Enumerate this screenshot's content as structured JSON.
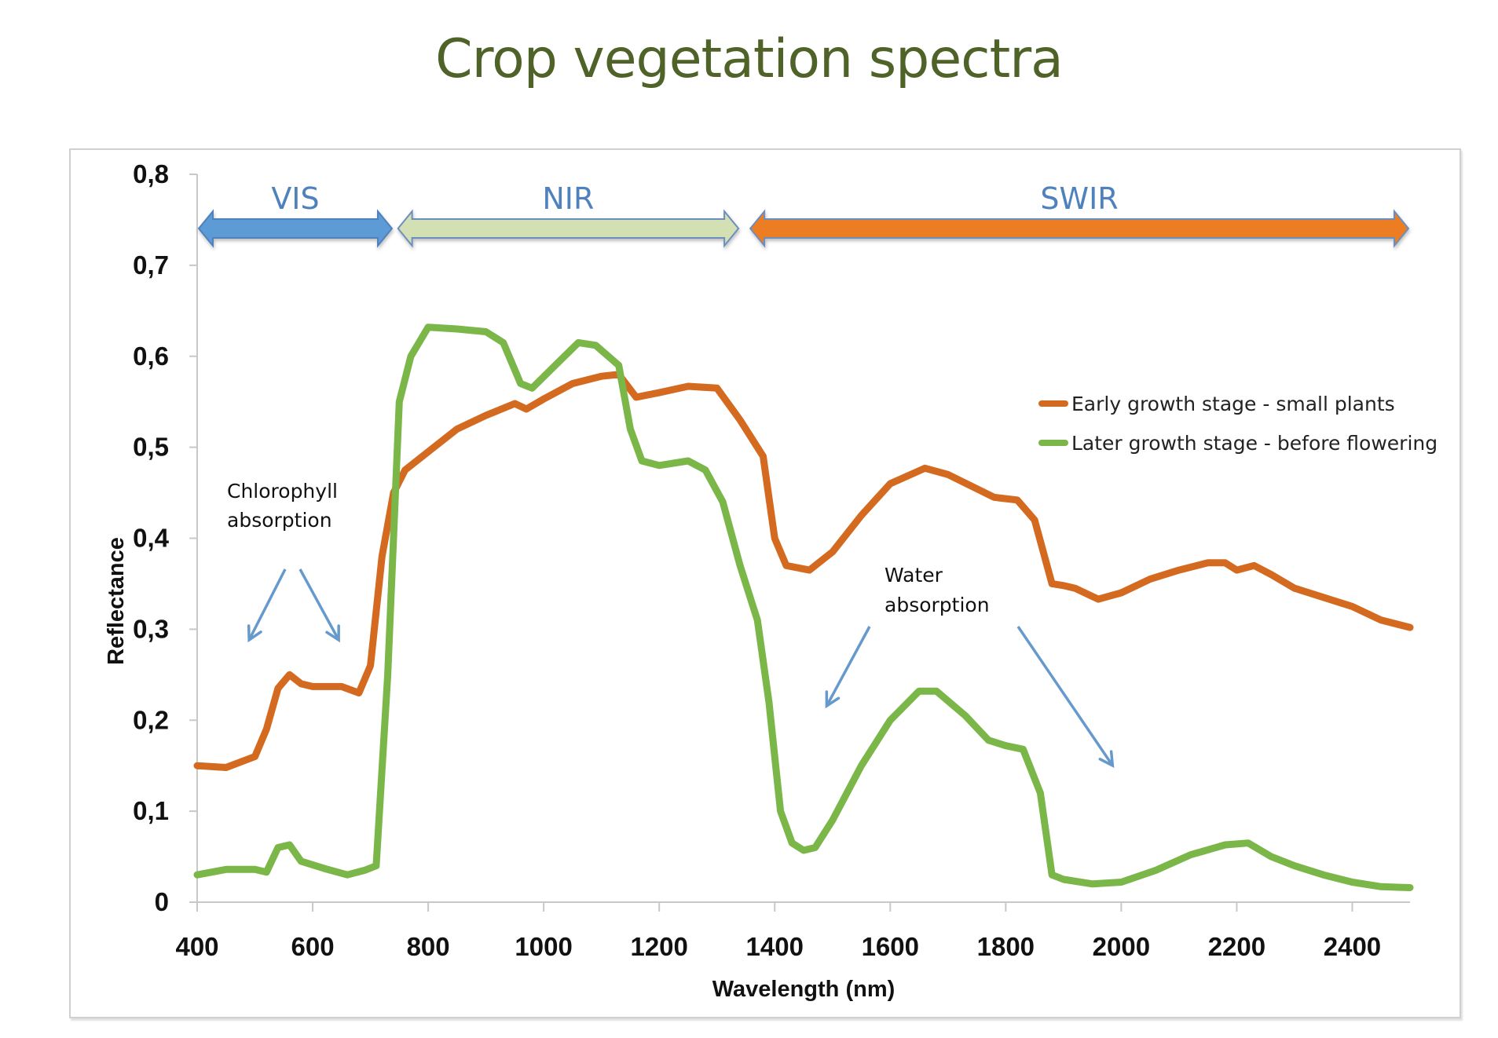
{
  "title": "Crop vegetation spectra",
  "chart_data": {
    "type": "line",
    "title": "Crop vegetation spectra",
    "xlabel": "Wavelength (nm)",
    "ylabel": "Reflectance",
    "xlim": [
      400,
      2500
    ],
    "ylim": [
      0,
      0.8
    ],
    "x_ticks": [
      400,
      600,
      800,
      1000,
      1200,
      1400,
      1600,
      1800,
      2000,
      2200,
      2400
    ],
    "y_ticks": [
      0,
      0.1,
      0.2,
      0.3,
      0.4,
      0.5,
      0.6,
      0.7,
      0.8
    ],
    "y_tick_labels": [
      "0",
      "0,1",
      "0,2",
      "0,3",
      "0,4",
      "0,5",
      "0,6",
      "0,7",
      "0,8"
    ],
    "x_tick_labels": [
      "400",
      "600",
      "800",
      "1000",
      "1200",
      "1400",
      "1600",
      "1800",
      "2000",
      "2200",
      "2400"
    ],
    "grid": false,
    "legend_position": "right",
    "series": [
      {
        "name": "Early growth stage - small plants",
        "color": "#d46a20",
        "x": [
          400,
          450,
          500,
          520,
          540,
          560,
          580,
          600,
          650,
          680,
          700,
          720,
          740,
          760,
          800,
          850,
          900,
          950,
          970,
          1000,
          1050,
          1100,
          1130,
          1160,
          1200,
          1250,
          1300,
          1340,
          1380,
          1400,
          1420,
          1460,
          1500,
          1550,
          1600,
          1660,
          1700,
          1780,
          1820,
          1850,
          1880,
          1900,
          1920,
          1960,
          2000,
          2050,
          2100,
          2150,
          2180,
          2200,
          2230,
          2260,
          2300,
          2350,
          2400,
          2450,
          2500
        ],
        "values": [
          0.15,
          0.148,
          0.16,
          0.19,
          0.235,
          0.25,
          0.24,
          0.237,
          0.237,
          0.23,
          0.26,
          0.38,
          0.45,
          0.475,
          0.495,
          0.52,
          0.535,
          0.548,
          0.542,
          0.553,
          0.57,
          0.578,
          0.58,
          0.555,
          0.56,
          0.567,
          0.565,
          0.53,
          0.49,
          0.4,
          0.37,
          0.365,
          0.385,
          0.425,
          0.46,
          0.477,
          0.47,
          0.445,
          0.442,
          0.42,
          0.35,
          0.348,
          0.345,
          0.333,
          0.34,
          0.355,
          0.365,
          0.373,
          0.373,
          0.365,
          0.37,
          0.36,
          0.345,
          0.335,
          0.325,
          0.31,
          0.302
        ]
      },
      {
        "name": "Later growth stage - before flowering",
        "color": "#7ab648",
        "x": [
          400,
          450,
          500,
          520,
          540,
          560,
          580,
          620,
          660,
          690,
          710,
          730,
          750,
          770,
          800,
          850,
          900,
          930,
          960,
          980,
          1020,
          1060,
          1090,
          1130,
          1150,
          1170,
          1200,
          1250,
          1280,
          1310,
          1340,
          1370,
          1390,
          1410,
          1430,
          1450,
          1470,
          1500,
          1550,
          1600,
          1650,
          1680,
          1730,
          1770,
          1800,
          1830,
          1860,
          1880,
          1900,
          1950,
          2000,
          2060,
          2120,
          2180,
          2220,
          2260,
          2300,
          2350,
          2400,
          2450,
          2500
        ],
        "values": [
          0.03,
          0.036,
          0.036,
          0.033,
          0.06,
          0.063,
          0.045,
          0.037,
          0.03,
          0.035,
          0.04,
          0.25,
          0.55,
          0.6,
          0.632,
          0.63,
          0.627,
          0.615,
          0.57,
          0.565,
          0.59,
          0.615,
          0.612,
          0.59,
          0.52,
          0.485,
          0.48,
          0.485,
          0.475,
          0.44,
          0.37,
          0.31,
          0.22,
          0.1,
          0.065,
          0.057,
          0.06,
          0.09,
          0.15,
          0.2,
          0.232,
          0.232,
          0.205,
          0.178,
          0.172,
          0.168,
          0.12,
          0.03,
          0.025,
          0.02,
          0.022,
          0.035,
          0.052,
          0.063,
          0.065,
          0.05,
          0.04,
          0.03,
          0.022,
          0.017,
          0.016
        ]
      }
    ],
    "bands": [
      {
        "label": "VIS",
        "from": 400,
        "to": 740,
        "fill": "#5b9bd5",
        "stroke": "#4f81bd"
      },
      {
        "label": "NIR",
        "from": 745,
        "to": 1340,
        "fill": "#d3e0b4",
        "stroke": "#6c8ebf"
      },
      {
        "label": "SWIR",
        "from": 1355,
        "to": 2500,
        "fill": "#ed7d22",
        "stroke": "#6c8ebf"
      }
    ],
    "annotations": [
      {
        "text_lines": [
          "Chlorophyll",
          "absorption"
        ],
        "arrow_targets_nm": [
          490,
          645
        ],
        "arrow_color": "#6699cc"
      },
      {
        "text_lines": [
          "Water",
          "absorption"
        ],
        "arrow_targets_nm": [
          1490,
          1985
        ],
        "arrow_color": "#6699cc"
      }
    ]
  }
}
